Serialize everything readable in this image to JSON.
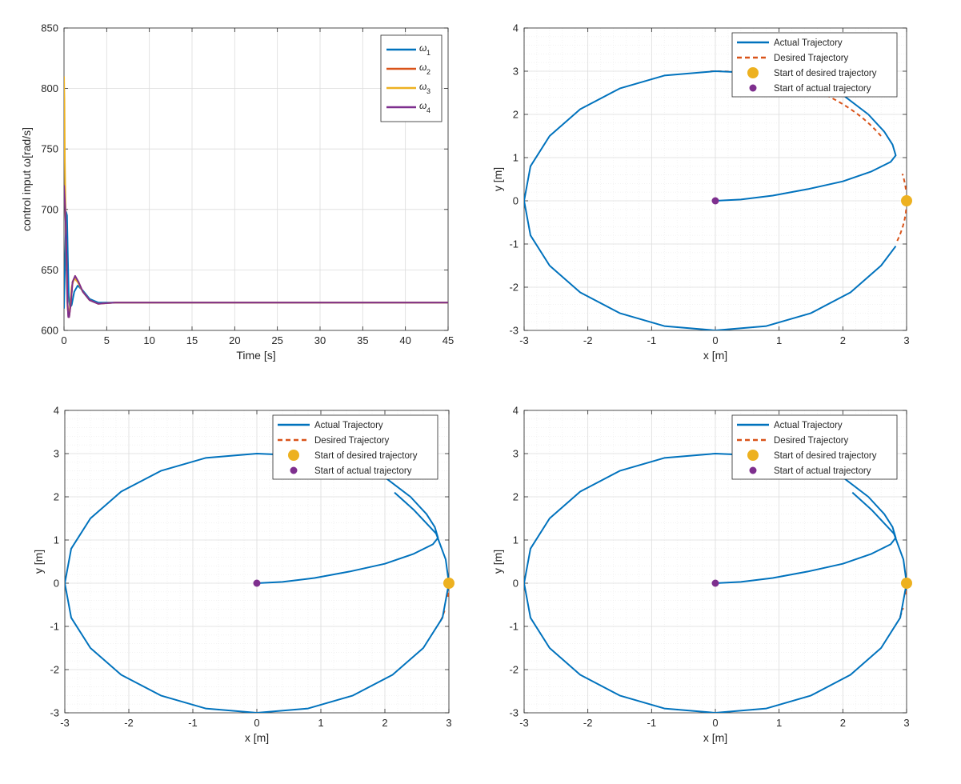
{
  "colors": {
    "blue": "#0072BD",
    "orange": "#D95319",
    "yellow": "#EDB120",
    "purple": "#7E2F8E",
    "axis": "#262626",
    "grid_major": "#dcdcdc",
    "grid_minor": "#ececec"
  },
  "chart_data": [
    {
      "type": "line",
      "panel": "top-left",
      "title": "",
      "xlabel": "Time [s]",
      "ylabel": "control input ω[rad/s]",
      "xlim": [
        0,
        45
      ],
      "ylim": [
        600,
        850
      ],
      "xticks": [
        0,
        5,
        10,
        15,
        20,
        25,
        30,
        35,
        40,
        45
      ],
      "yticks": [
        600,
        650,
        700,
        750,
        800,
        850
      ],
      "grid": true,
      "legend_position": "top-right",
      "series": [
        {
          "name": "ω1",
          "label_main": "ω",
          "label_sub": "1",
          "color_key": "blue",
          "x": [
            0,
            0.1,
            0.25,
            0.35,
            0.45,
            0.55,
            0.7,
            0.9,
            1.2,
            1.6,
            2.2,
            3,
            4,
            6,
            10,
            20,
            45
          ],
          "y": [
            618,
            650,
            698,
            695,
            660,
            628,
            619,
            621,
            632,
            637,
            633,
            626,
            623,
            623,
            623,
            623,
            623
          ]
        },
        {
          "name": "ω2",
          "label_main": "ω",
          "label_sub": "2",
          "color_key": "orange",
          "x": [
            0,
            0.15,
            0.3,
            0.4,
            0.5,
            0.6,
            0.8,
            1.0,
            1.3,
            1.7,
            2.2,
            3,
            4,
            6,
            10,
            20,
            45
          ],
          "y": [
            720,
            700,
            660,
            625,
            612,
            611,
            622,
            640,
            645,
            640,
            632,
            625,
            622,
            623,
            623,
            623,
            623
          ]
        },
        {
          "name": "ω3",
          "label_main": "ω",
          "label_sub": "3",
          "color_key": "yellow",
          "x": [
            0,
            0.05,
            0.1,
            0.2,
            0.3,
            0.4,
            0.55,
            0.7,
            0.9,
            1.2,
            1.6,
            2.2,
            3,
            4,
            6,
            10,
            20,
            45
          ],
          "y": [
            810,
            790,
            740,
            690,
            650,
            620,
            611,
            620,
            636,
            643,
            640,
            632,
            625,
            622,
            623,
            623,
            623,
            623
          ]
        },
        {
          "name": "ω4",
          "label_main": "ω",
          "label_sub": "4",
          "color_key": "purple",
          "x": [
            0,
            0.15,
            0.3,
            0.4,
            0.5,
            0.6,
            0.8,
            1.0,
            1.3,
            1.7,
            2.2,
            3,
            4,
            6,
            10,
            20,
            45
          ],
          "y": [
            720,
            700,
            660,
            624,
            611,
            611,
            623,
            640,
            645,
            640,
            632,
            625,
            622,
            623,
            623,
            623,
            623
          ]
        }
      ]
    },
    {
      "type": "line",
      "panel": "top-right",
      "title": "",
      "xlabel": "x [m]",
      "ylabel": "y [m]",
      "xlim": [
        -3,
        3
      ],
      "ylim": [
        -3,
        4
      ],
      "xticks": [
        -3,
        -2,
        -1,
        0,
        1,
        2,
        3
      ],
      "yticks": [
        -3,
        -2,
        -1,
        0,
        1,
        2,
        3,
        4
      ],
      "grid": true,
      "legend_position": "top-right",
      "radius": 3,
      "desired_visible_arcs_deg": [
        [
          -18,
          3
        ],
        [
          5,
          12
        ],
        [
          30,
          55
        ],
        [
          86,
          92
        ]
      ],
      "series": [
        {
          "name": "Actual Trajectory",
          "color_key": "blue",
          "x": [
            0.0,
            0.4,
            0.9,
            1.45,
            2.0,
            2.45,
            2.75,
            2.83,
            2.78,
            2.65,
            2.4,
            2.0,
            1.5,
            0.8,
            0.0,
            -0.8,
            -1.5,
            -2.12,
            -2.6,
            -2.9,
            -3.0,
            -2.9,
            -2.6,
            -2.12,
            -1.5,
            -0.8,
            0.0,
            0.8,
            1.5,
            2.12,
            2.6,
            2.83
          ],
          "y": [
            0.0,
            0.03,
            0.12,
            0.27,
            0.45,
            0.68,
            0.9,
            1.05,
            1.3,
            1.6,
            2.0,
            2.45,
            2.75,
            2.95,
            3.0,
            2.9,
            2.6,
            2.12,
            1.5,
            0.8,
            0.0,
            -0.8,
            -1.5,
            -2.12,
            -2.6,
            -2.9,
            -3.0,
            -2.9,
            -2.6,
            -2.12,
            -1.5,
            -1.05
          ]
        },
        {
          "name": "Desired Trajectory",
          "color_key": "orange"
        },
        {
          "name": "Start of desired trajectory",
          "color_key": "yellow",
          "x": [
            3
          ],
          "y": [
            0
          ]
        },
        {
          "name": "Start of actual trajectory",
          "color_key": "purple",
          "x": [
            0
          ],
          "y": [
            0
          ]
        }
      ]
    },
    {
      "type": "line",
      "panel": "bottom-left",
      "title": "",
      "xlabel": "x [m]",
      "ylabel": "y [m]",
      "xlim": [
        -3,
        3
      ],
      "ylim": [
        -3,
        4
      ],
      "xticks": [
        -3,
        -2,
        -1,
        0,
        1,
        2,
        3
      ],
      "yticks": [
        -3,
        -2,
        -1,
        0,
        1,
        2,
        3,
        4
      ],
      "grid": true,
      "legend_position": "top-right",
      "radius": 3,
      "desired_visible_arcs_deg": [
        [
          -17,
          -12
        ],
        [
          -6,
          -1
        ]
      ],
      "series": [
        {
          "name": "Actual Trajectory",
          "color_key": "blue",
          "x": [
            0.0,
            0.4,
            0.9,
            1.45,
            2.0,
            2.45,
            2.75,
            2.83,
            2.78,
            2.65,
            2.4,
            2.0,
            1.5,
            0.8,
            0.0,
            -0.8,
            -1.5,
            -2.12,
            -2.6,
            -2.9,
            -3.0,
            -2.9,
            -2.6,
            -2.12,
            -1.5,
            -0.8,
            0.0,
            0.8,
            1.5,
            2.12,
            2.6,
            2.9,
            3.0,
            2.95,
            2.8,
            2.45,
            2.15
          ],
          "y": [
            0.0,
            0.03,
            0.12,
            0.27,
            0.45,
            0.68,
            0.9,
            1.05,
            1.3,
            1.6,
            2.0,
            2.45,
            2.75,
            2.95,
            3.0,
            2.9,
            2.6,
            2.12,
            1.5,
            0.8,
            0.0,
            -0.8,
            -1.5,
            -2.12,
            -2.6,
            -2.9,
            -3.0,
            -2.9,
            -2.6,
            -2.12,
            -1.5,
            -0.8,
            0.0,
            0.55,
            1.15,
            1.7,
            2.1
          ]
        },
        {
          "name": "Desired Trajectory",
          "color_key": "orange"
        },
        {
          "name": "Start of desired trajectory",
          "color_key": "yellow",
          "x": [
            3
          ],
          "y": [
            0
          ]
        },
        {
          "name": "Start of actual trajectory",
          "color_key": "purple",
          "x": [
            0
          ],
          "y": [
            0
          ]
        }
      ]
    },
    {
      "type": "line",
      "panel": "bottom-right",
      "title": "",
      "xlabel": "x [m]",
      "ylabel": "y [m]",
      "xlim": [
        -3,
        3
      ],
      "ylim": [
        -3,
        4
      ],
      "xticks": [
        -3,
        -2,
        -1,
        0,
        1,
        2,
        3
      ],
      "yticks": [
        -3,
        -2,
        -1,
        0,
        1,
        2,
        3,
        4
      ],
      "grid": true,
      "legend_position": "top-right",
      "radius": 3,
      "desired_visible_arcs_deg": [
        [
          -15,
          -11
        ],
        [
          -5,
          -2
        ]
      ],
      "series": [
        {
          "name": "Actual Trajectory",
          "color_key": "blue",
          "x": [
            0.0,
            0.4,
            0.9,
            1.45,
            2.0,
            2.45,
            2.75,
            2.83,
            2.78,
            2.65,
            2.4,
            2.0,
            1.5,
            0.8,
            0.0,
            -0.8,
            -1.5,
            -2.12,
            -2.6,
            -2.9,
            -3.0,
            -2.9,
            -2.6,
            -2.12,
            -1.5,
            -0.8,
            0.0,
            0.8,
            1.5,
            2.12,
            2.6,
            2.9,
            3.0,
            2.95,
            2.8,
            2.45,
            2.15
          ],
          "y": [
            0.0,
            0.03,
            0.12,
            0.27,
            0.45,
            0.68,
            0.9,
            1.05,
            1.3,
            1.6,
            2.0,
            2.45,
            2.75,
            2.95,
            3.0,
            2.9,
            2.6,
            2.12,
            1.5,
            0.8,
            0.0,
            -0.8,
            -1.5,
            -2.12,
            -2.6,
            -2.9,
            -3.0,
            -2.9,
            -2.6,
            -2.12,
            -1.5,
            -0.8,
            0.0,
            0.55,
            1.15,
            1.7,
            2.1
          ]
        },
        {
          "name": "Desired Trajectory",
          "color_key": "orange"
        },
        {
          "name": "Start of desired trajectory",
          "color_key": "yellow",
          "x": [
            3
          ],
          "y": [
            0
          ]
        },
        {
          "name": "Start of actual trajectory",
          "color_key": "purple",
          "x": [
            0
          ],
          "y": [
            0
          ]
        }
      ]
    }
  ]
}
